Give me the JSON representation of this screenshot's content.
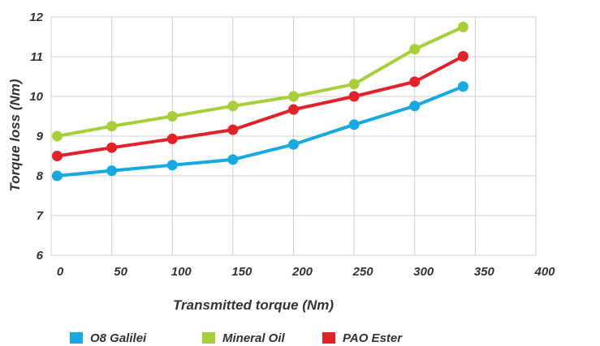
{
  "chart_data": {
    "type": "line",
    "title": "",
    "xlabel": "Transmitted torque (Nm)",
    "ylabel": "Torque loss (Nm)",
    "xlim": [
      0,
      400
    ],
    "ylim": [
      6,
      12
    ],
    "xticks": [
      "0",
      "50",
      "100",
      "150",
      "200",
      "250",
      "300",
      "350",
      "400"
    ],
    "yticks": [
      "6",
      "7",
      "8",
      "9",
      "10",
      "11",
      "12"
    ],
    "grid": true,
    "legend_position": "bottom",
    "x": [
      5,
      50,
      100,
      150,
      200,
      250,
      300,
      340
    ],
    "series": [
      {
        "name": "O8 Galilei",
        "color": "#17a9e2",
        "values": [
          8.0,
          8.13,
          8.27,
          8.41,
          8.79,
          9.29,
          9.76,
          10.25
        ]
      },
      {
        "name": "Mineral Oil",
        "color": "#a6cf3a",
        "values": [
          9.0,
          9.25,
          9.5,
          9.76,
          10.0,
          10.31,
          11.19,
          11.75
        ]
      },
      {
        "name": "PAO Ester",
        "color": "#e32129",
        "values": [
          8.5,
          8.71,
          8.93,
          9.16,
          9.67,
          10.0,
          10.37,
          11.01
        ]
      }
    ]
  }
}
